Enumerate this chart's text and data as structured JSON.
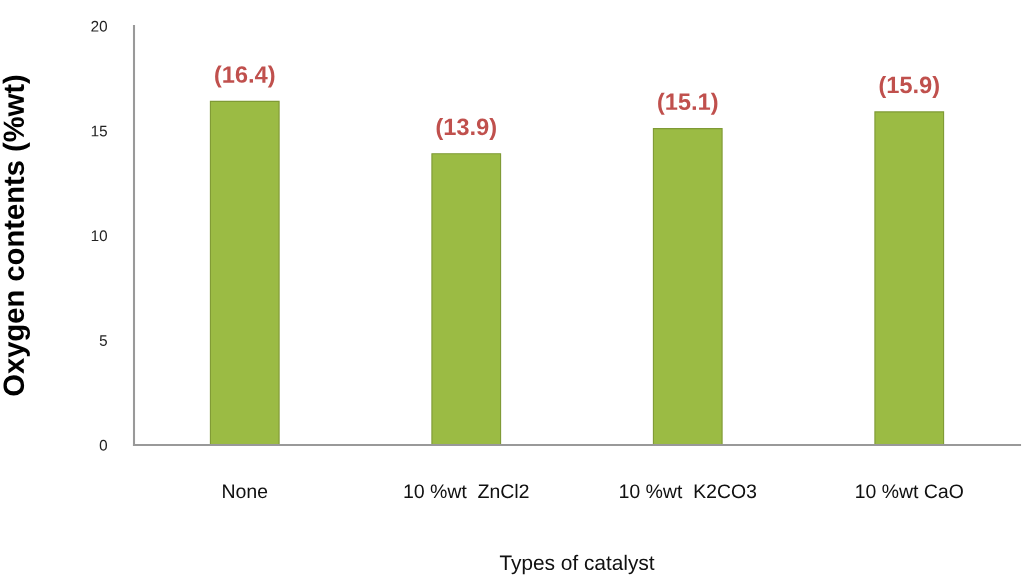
{
  "chart_data": {
    "type": "bar",
    "categories": [
      "None",
      "10 %wt  ZnCl2",
      "10 %wt  K2CO3",
      "10 %wt CaO"
    ],
    "values": [
      16.4,
      13.9,
      15.1,
      15.9
    ],
    "value_labels": [
      "(16.4)",
      "(13.9)",
      "(15.1)",
      "(15.9)"
    ],
    "color": "#9bbb44",
    "xlabel": "Types of catalyst",
    "ylabel": "Oxygen contents (%wt)",
    "ylim": [
      0,
      20
    ],
    "yticks": [
      0,
      5,
      10,
      15,
      20
    ],
    "grid": false,
    "legend": false
  }
}
